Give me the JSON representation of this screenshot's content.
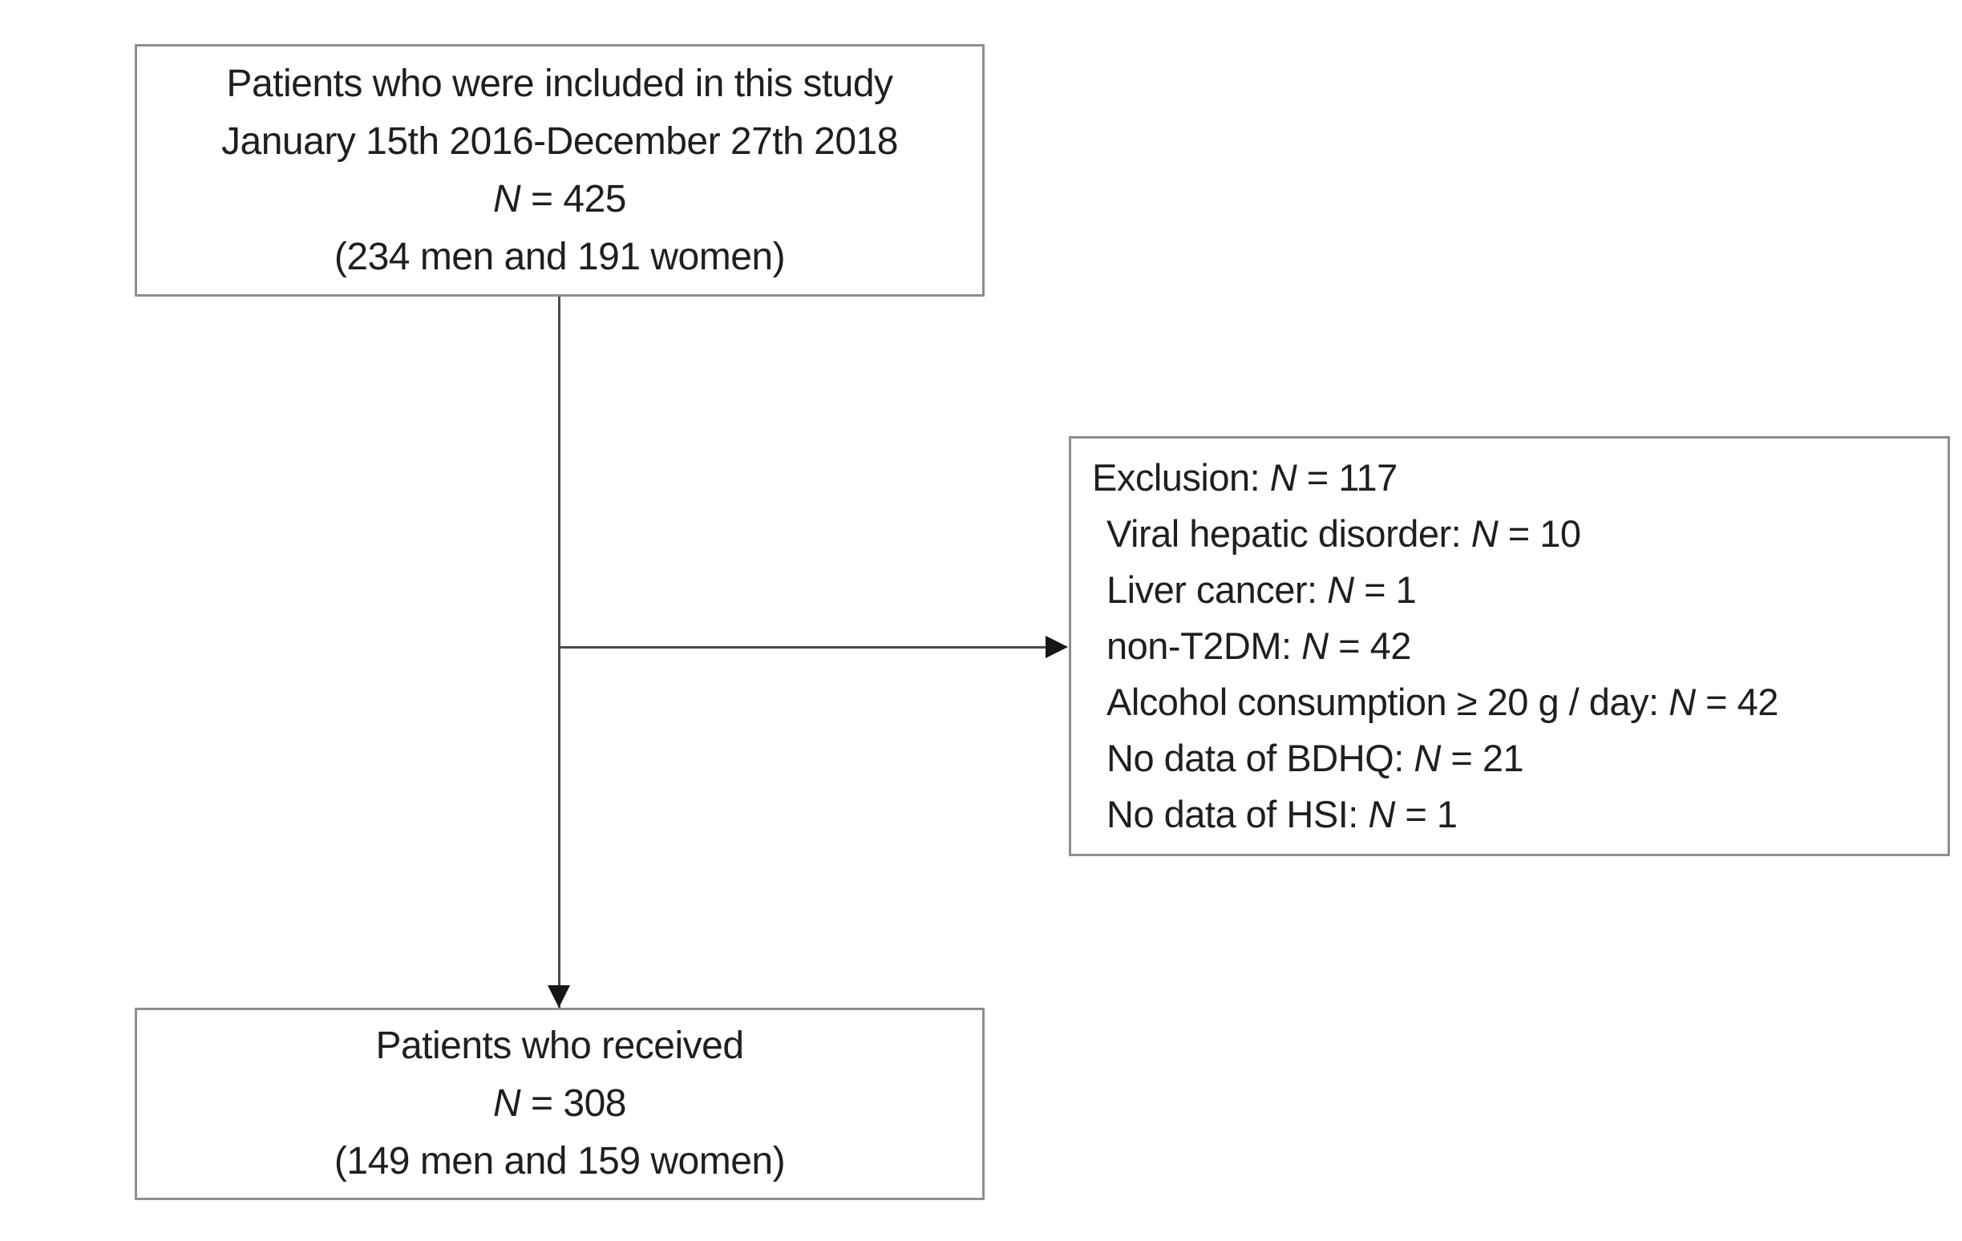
{
  "boxes": {
    "enrollment": {
      "line1": "Patients who were included in this study",
      "line2": "January 15th 2016-December 27th 2018",
      "n_label": "N",
      "n_value": " = 425",
      "line4": "(234 men and 191 women)"
    },
    "exclusion": {
      "lines": [
        {
          "prefix": "Exclusion: ",
          "n_label": "N",
          "n_value": " = 117"
        },
        {
          "prefix": "Viral hepatic disorder: ",
          "n_label": "N",
          "n_value": " = 10"
        },
        {
          "prefix": "Liver cancer: ",
          "n_label": "N",
          "n_value": " = 1"
        },
        {
          "prefix": "non-T2DM: ",
          "n_label": "N",
          "n_value": " = 42"
        },
        {
          "prefix": "Alcohol consumption ≥ 20 g / day: ",
          "n_label": "N",
          "n_value": " = 42"
        },
        {
          "prefix": "No data of BDHQ: ",
          "n_label": "N",
          "n_value": " = 21"
        },
        {
          "prefix": "No data of HSI: ",
          "n_label": "N",
          "n_value": " = 1"
        }
      ]
    },
    "received": {
      "line1": "Patients who received",
      "n_label": "N",
      "n_value": " = 308",
      "line3": "(149 men and 159 women)"
    }
  },
  "icons": {
    "arrowhead_down": "css-triangle-down",
    "arrowhead_right": "css-triangle-right"
  },
  "colors": {
    "background": "#ffffff",
    "box_border": "#8e8e8e",
    "connector_line": "#4b4b4b",
    "arrowhead": "#161616",
    "text": "#1f1f1f"
  }
}
